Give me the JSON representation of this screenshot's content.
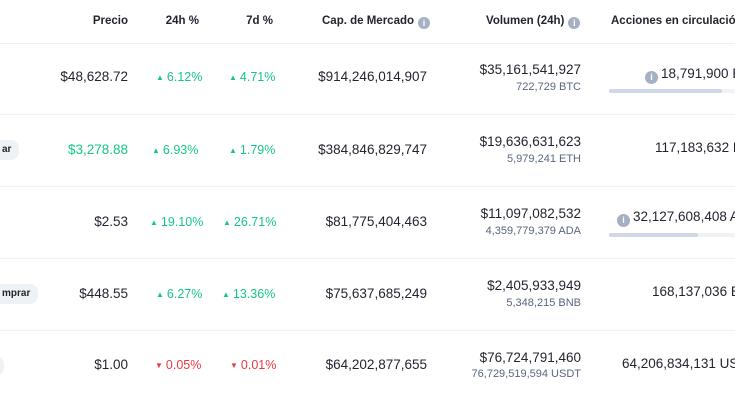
{
  "headers": {
    "price": "Precio",
    "change_24h": "24h %",
    "change_7d": "7d %",
    "market_cap": "Cap. de Mercado",
    "volume": "Volumen (24h)",
    "supply": "Acciones en circulació"
  },
  "rows": [
    {
      "button": "",
      "price": "$48,628.72",
      "change_24h": "6.12%",
      "change_24h_dir": "up",
      "change_7d": "4.71%",
      "change_7d_dir": "up",
      "market_cap": "$914,246,014,907",
      "volume": "$35,161,541,927",
      "volume_sub": "722,729 BTC",
      "supply": "18,791,900 B",
      "supply_progress": 0.9
    },
    {
      "button": "ar",
      "price": "$3,278.88",
      "change_24h": "6.93%",
      "change_24h_dir": "up",
      "change_7d": "1.79%",
      "change_7d_dir": "up",
      "market_cap": "$384,846,829,747",
      "volume": "$19,636,631,623",
      "volume_sub": "5,979,241 ETH",
      "supply": "117,183,632 E",
      "supply_progress": null
    },
    {
      "button": "",
      "price": "$2.53",
      "change_24h": "19.10%",
      "change_24h_dir": "up",
      "change_7d": "26.71%",
      "change_7d_dir": "up",
      "market_cap": "$81,775,404,463",
      "volume": "$11,097,082,532",
      "volume_sub": "4,359,779,379 ADA",
      "supply": "32,127,608,408 A",
      "supply_progress": 0.71
    },
    {
      "button": "mprar",
      "price": "$448.55",
      "change_24h": "6.27%",
      "change_24h_dir": "up",
      "change_7d": "13.36%",
      "change_7d_dir": "up",
      "market_cap": "$75,637,685,249",
      "volume": "$2,405,933,949",
      "volume_sub": "5,348,215 BNB",
      "supply": "168,137,036 B",
      "supply_progress": null
    },
    {
      "button": "",
      "price": "$1.00",
      "change_24h": "0.05%",
      "change_24h_dir": "down",
      "change_7d": "0.01%",
      "change_7d_dir": "down",
      "market_cap": "$64,202,877,655",
      "volume": "$76,724,791,460",
      "volume_sub": "76,729,519,594 USDT",
      "supply": "64,206,834,131 US",
      "supply_progress": null
    }
  ]
}
